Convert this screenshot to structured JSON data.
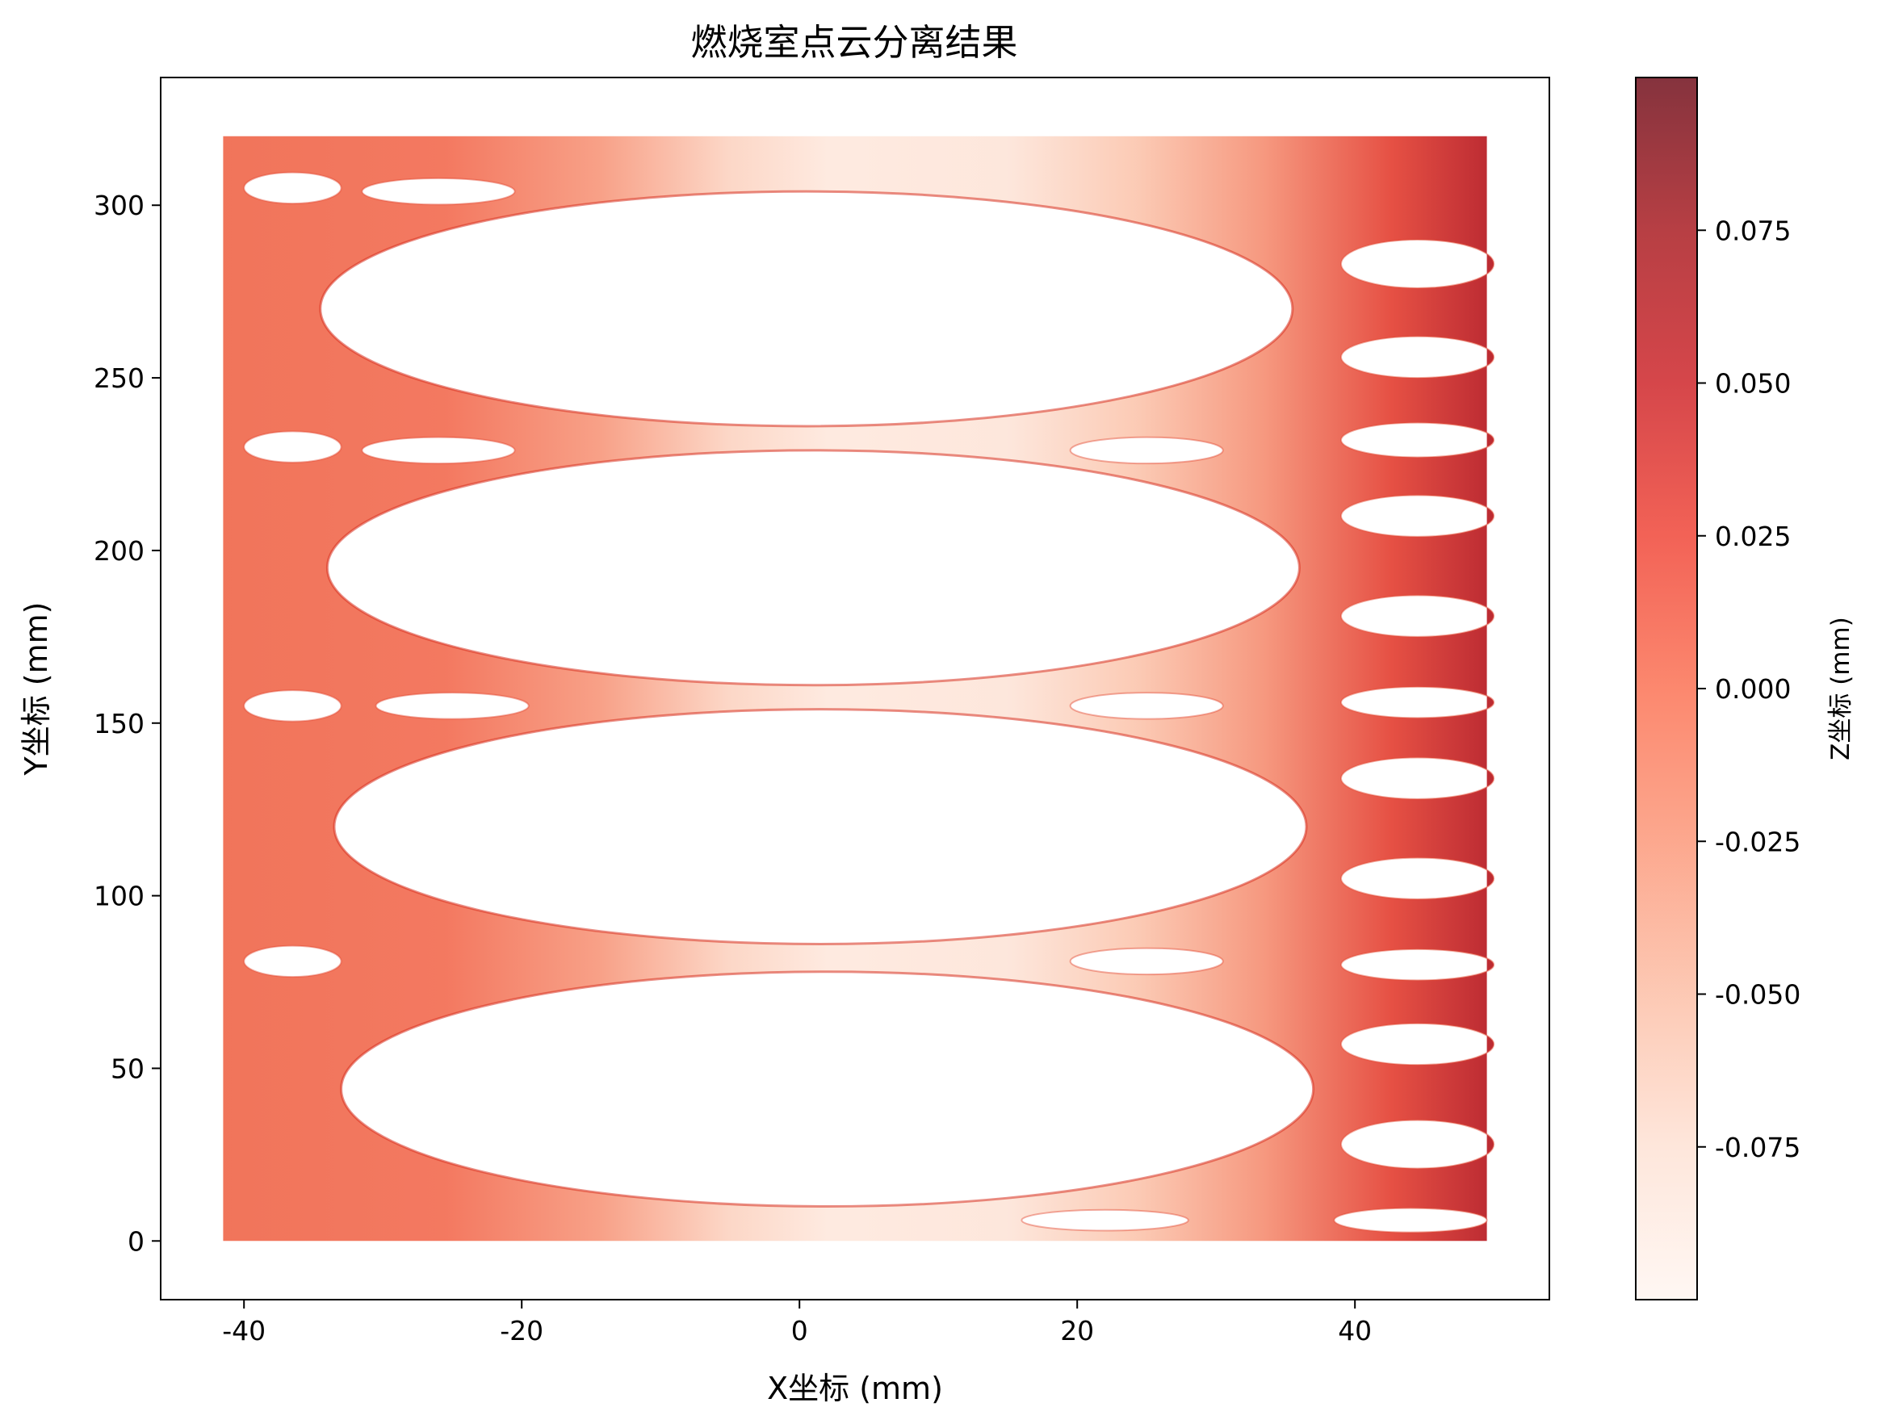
{
  "chart_data": {
    "type": "scatter",
    "title": "燃烧室点云分离结果",
    "xlabel": "X坐标 (mm)",
    "ylabel": "Y坐标 (mm)",
    "xlim": [
      -46,
      54
    ],
    "ylim": [
      -17,
      337
    ],
    "xticks": [
      -40,
      -20,
      0,
      20,
      40
    ],
    "xtick_labels": [
      "-40",
      "-20",
      "0",
      "20",
      "40"
    ],
    "yticks": [
      0,
      50,
      100,
      150,
      200,
      250,
      300
    ],
    "ytick_labels": [
      "0",
      "50",
      "100",
      "150",
      "200",
      "250",
      "300"
    ],
    "colorbar": {
      "label": "Z坐标 (mm)",
      "cmap": "Reds",
      "range": [
        -0.1,
        0.1
      ],
      "ticks": [
        0.075,
        0.05,
        0.025,
        0.0,
        -0.025,
        -0.05,
        -0.075
      ],
      "tick_labels": [
        "0.075",
        "0.050",
        "0.025",
        "0.000",
        "-0.025",
        "-0.050",
        "-0.075"
      ]
    },
    "grid": false,
    "point_cloud_extent": {
      "x": [
        -41.5,
        49.5
      ],
      "y": [
        0,
        320
      ]
    },
    "large_holes": [
      {
        "cx": 0.5,
        "cy": 270,
        "rx": 35,
        "ry": 34
      },
      {
        "cx": 1,
        "cy": 195,
        "rx": 35,
        "ry": 34
      },
      {
        "cx": 1.5,
        "cy": 120,
        "rx": 35,
        "ry": 34
      },
      {
        "cx": 2,
        "cy": 44,
        "rx": 35,
        "ry": 34
      }
    ],
    "small_holes": [
      {
        "cx": -26,
        "cy": 304,
        "rx": 5.5,
        "ry": 3.8
      },
      {
        "cx": -26,
        "cy": 229,
        "rx": 5.5,
        "ry": 3.8
      },
      {
        "cx": -25,
        "cy": 155,
        "rx": 5.5,
        "ry": 3.8
      },
      {
        "cx": 25,
        "cy": 229,
        "rx": 5.5,
        "ry": 3.8
      },
      {
        "cx": 25,
        "cy": 155,
        "rx": 5.5,
        "ry": 3.8
      },
      {
        "cx": 25,
        "cy": 81,
        "rx": 5.5,
        "ry": 3.8
      },
      {
        "cx": -36.5,
        "cy": 305,
        "rx": 3.5,
        "ry": 4.5
      },
      {
        "cx": -36.5,
        "cy": 230,
        "rx": 3.5,
        "ry": 4.5
      },
      {
        "cx": -36.5,
        "cy": 155,
        "rx": 3.5,
        "ry": 4.5
      },
      {
        "cx": -36.5,
        "cy": 81,
        "rx": 3.5,
        "ry": 4.5
      },
      {
        "cx": 44.5,
        "cy": 283,
        "rx": 5.5,
        "ry": 7
      },
      {
        "cx": 44.5,
        "cy": 256,
        "rx": 5.5,
        "ry": 6
      },
      {
        "cx": 44.5,
        "cy": 232,
        "rx": 5.5,
        "ry": 5
      },
      {
        "cx": 44.5,
        "cy": 210,
        "rx": 5.5,
        "ry": 6
      },
      {
        "cx": 44.5,
        "cy": 181,
        "rx": 5.5,
        "ry": 6
      },
      {
        "cx": 44.5,
        "cy": 156,
        "rx": 5.5,
        "ry": 4.5
      },
      {
        "cx": 44.5,
        "cy": 134,
        "rx": 5.5,
        "ry": 6
      },
      {
        "cx": 44.5,
        "cy": 105,
        "rx": 5.5,
        "ry": 6
      },
      {
        "cx": 44.5,
        "cy": 80,
        "rx": 5.5,
        "ry": 4.5
      },
      {
        "cx": 44.5,
        "cy": 57,
        "rx": 5.5,
        "ry": 6
      },
      {
        "cx": 44.5,
        "cy": 28,
        "rx": 5.5,
        "ry": 7
      },
      {
        "cx": 44,
        "cy": 6,
        "rx": 5.5,
        "ry": 3.5
      },
      {
        "cx": 22,
        "cy": 6,
        "rx": 6,
        "ry": 3
      }
    ],
    "color_trend": "Z ≈ 0 near the left edge (x ≈ -40), ≈ -0.09 around x ≈ 0–25, rising to ≈ 0.09 near x ≈ 48 at the bottom right"
  }
}
